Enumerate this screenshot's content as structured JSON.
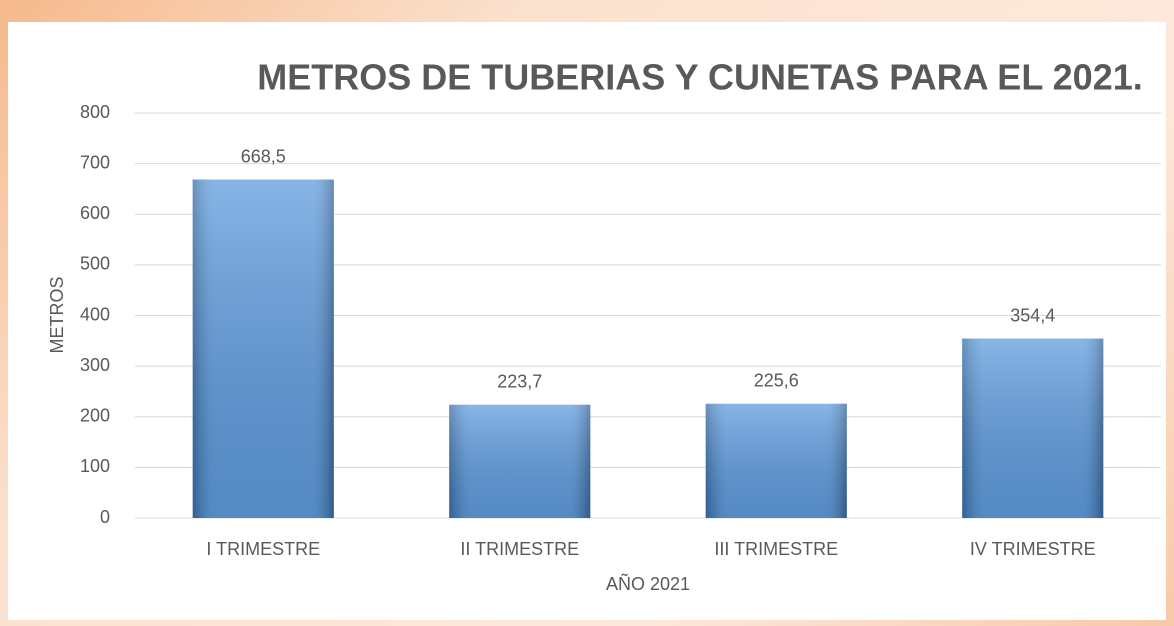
{
  "chart_data": {
    "type": "bar",
    "title": "METROS DE TUBERIAS Y CUNETAS PARA EL 2021.",
    "x_label": "AÑO 2021",
    "y_label": "METROS",
    "categories": [
      "I TRIMESTRE",
      "II TRIMESTRE",
      "III TRIMESTRE",
      "IV TRIMESTRE"
    ],
    "values": [
      668.5,
      223.7,
      225.6,
      354.4
    ],
    "value_labels": [
      "668,5",
      "223,7",
      "225,6",
      "354,4"
    ],
    "color": "#4a90dc",
    "ylim": [
      0,
      800
    ],
    "yticks": [
      0,
      100,
      200,
      300,
      400,
      500,
      600,
      700,
      800
    ],
    "grid": true
  }
}
